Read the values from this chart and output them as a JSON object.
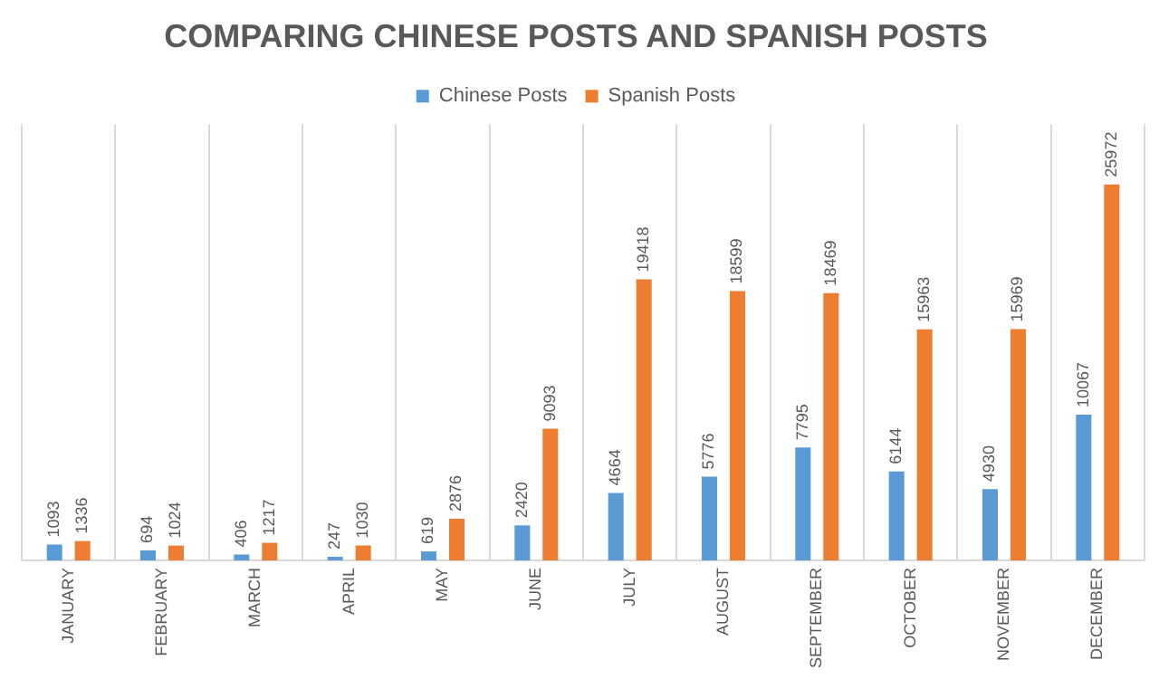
{
  "chart_data": {
    "type": "bar",
    "title": "COMPARING CHINESE POSTS AND SPANISH POSTS",
    "categories": [
      "JANUARY",
      "FEBRUARY",
      "MARCH",
      "APRIL",
      "MAY",
      "JUNE",
      "JULY",
      "AUGUST",
      "SEPTEMBER",
      "OCTOBER",
      "NOVEMBER",
      "DECEMBER"
    ],
    "series": [
      {
        "name": "Chinese Posts",
        "color": "#5b9bd5",
        "values": [
          1093,
          694,
          406,
          247,
          619,
          2420,
          4664,
          5776,
          7795,
          6144,
          4930,
          10067
        ]
      },
      {
        "name": "Spanish Posts",
        "color": "#ed7d31",
        "values": [
          1336,
          1024,
          1217,
          1030,
          2876,
          9093,
          19418,
          18599,
          18469,
          15963,
          15969,
          25972
        ]
      }
    ],
    "relative": false,
    "data_labels": true,
    "grid": "x",
    "legend": "top"
  }
}
